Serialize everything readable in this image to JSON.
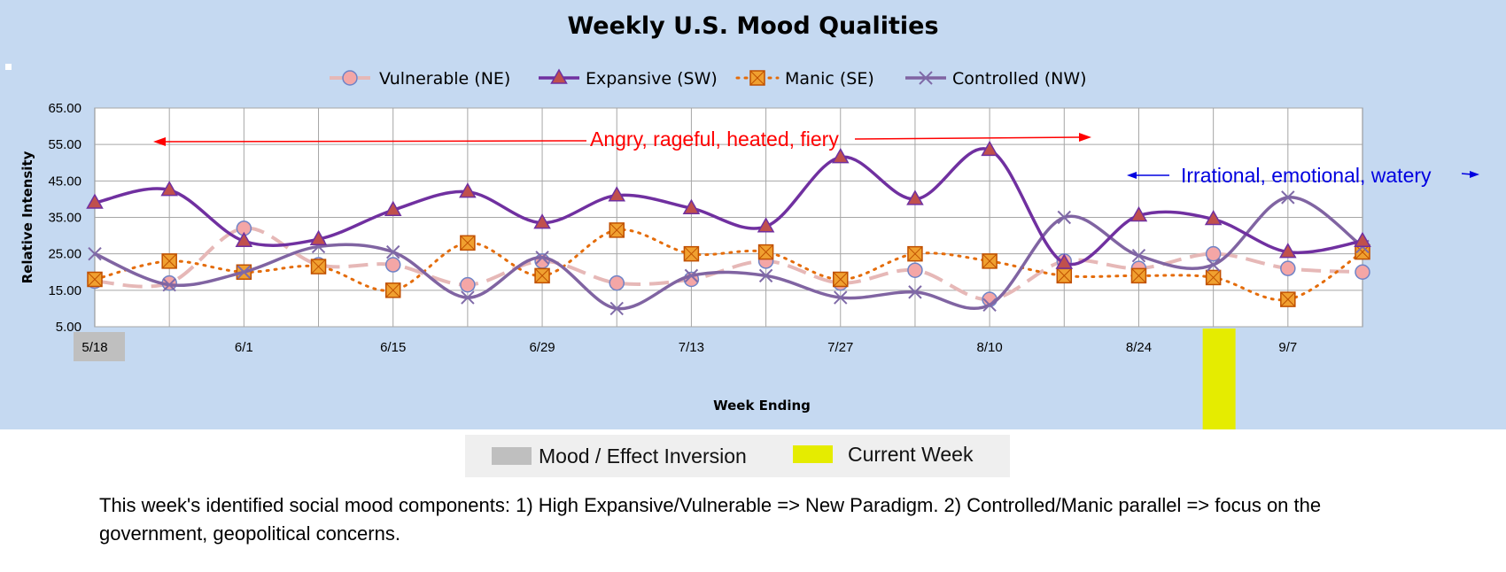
{
  "chart_data": {
    "type": "line",
    "title": "Weekly U.S. Mood Qualities",
    "xlabel": "Week Ending",
    "ylabel": "Relative Intensity",
    "ylim": [
      5,
      65
    ],
    "yticks": [
      "5.00",
      "15.00",
      "25.00",
      "35.00",
      "45.00",
      "55.00",
      "65.00"
    ],
    "x_tick_labels": [
      "5/18",
      "6/1",
      "6/15",
      "6/29",
      "7/13",
      "7/27",
      "8/10",
      "8/24",
      "9/7"
    ],
    "x_tick_indices": [
      0,
      2,
      4,
      6,
      8,
      10,
      12,
      14,
      16
    ],
    "grid": true,
    "legend_position": "top",
    "series": [
      {
        "name": "Vulnerable (NE)",
        "color": "#e6b8b7",
        "marker": "circle",
        "values": [
          17.5,
          17,
          32,
          22,
          22,
          16.5,
          23,
          17,
          18,
          23,
          17,
          20.5,
          12.5,
          23,
          21,
          25,
          21,
          20
        ]
      },
      {
        "name": "Expansive (SW)",
        "color": "#7030a0",
        "marker": "triangle",
        "values": [
          39,
          42.5,
          28.5,
          29,
          37,
          42,
          33.5,
          41,
          37.5,
          32.5,
          51.5,
          40,
          53.5,
          22.5,
          35.5,
          34.5,
          25.5,
          28.5
        ]
      },
      {
        "name": "Manic (SE)",
        "color": "#e46c0a",
        "marker": "square",
        "values": [
          18,
          23,
          20,
          21.5,
          15,
          28,
          19,
          31.5,
          25,
          25.5,
          18,
          25,
          23,
          19,
          19,
          18.5,
          12.5,
          25.5
        ]
      },
      {
        "name": "Controlled (NW)",
        "color": "#8064a2",
        "marker": "x",
        "values": [
          25,
          16.5,
          20,
          27,
          25.5,
          13,
          24,
          10,
          19,
          19,
          13,
          14.5,
          11,
          35,
          24.5,
          22,
          40.5,
          27
        ]
      }
    ],
    "annotations": [
      {
        "text": "Angry, rageful, heated, fiery",
        "color": "#ff0000"
      },
      {
        "text": "Irrational, emotional, watery",
        "color": "#0000e0"
      }
    ],
    "highlights": [
      {
        "label": "Mood / Effect Inversion",
        "color": "#bfbfbf",
        "index": 0
      },
      {
        "label": "Current Week",
        "color": "#e5ec00",
        "index": 15
      }
    ]
  },
  "summary_text": "This week's identified social mood components: 1) High Expansive/Vulnerable => New Paradigm.  2) Controlled/Manic parallel =>  focus on the government, geopolitical concerns."
}
